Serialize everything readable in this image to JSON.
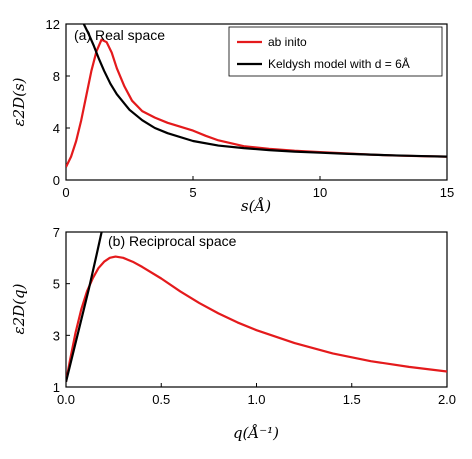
{
  "colors": {
    "ab_initio": "#e41a1c",
    "keldysh": "#000000"
  },
  "chart_data": [
    {
      "type": "line",
      "title": "(a) Real space",
      "xlabel": "s(Å)",
      "ylabel": "ε2D(s)",
      "xlim": [
        0,
        15
      ],
      "ylim": [
        0,
        12
      ],
      "xticks": [
        "0",
        "5",
        "10",
        "15"
      ],
      "yticks": [
        "0",
        "4",
        "8",
        "12"
      ],
      "legend_position": "top-right",
      "series": [
        {
          "name": "ab inito",
          "color": "#e41a1c",
          "x": [
            0,
            0.2,
            0.4,
            0.6,
            0.8,
            1.0,
            1.2,
            1.4,
            1.6,
            1.8,
            2.0,
            2.3,
            2.6,
            3.0,
            3.5,
            4.0,
            4.5,
            5.0,
            5.5,
            6.0,
            7.0,
            8.0,
            9.0,
            10.0,
            11.0,
            12.0,
            13.0,
            14.0,
            15.0
          ],
          "y": [
            1.0,
            1.8,
            3.0,
            4.6,
            6.5,
            8.4,
            9.9,
            10.8,
            10.6,
            9.8,
            8.6,
            7.2,
            6.1,
            5.3,
            4.8,
            4.4,
            4.1,
            3.8,
            3.4,
            3.05,
            2.6,
            2.4,
            2.25,
            2.15,
            2.05,
            1.95,
            1.88,
            1.83,
            1.8
          ]
        },
        {
          "name": "Keldysh model with d = 6Å",
          "color": "#000000",
          "x": [
            0.55,
            0.7,
            0.9,
            1.1,
            1.3,
            1.5,
            1.75,
            2.0,
            2.5,
            3.0,
            3.5,
            4.0,
            5.0,
            6.0,
            7.0,
            8.0,
            9.0,
            10.0,
            11.0,
            12.0,
            13.0,
            14.0,
            15.0
          ],
          "y": [
            12.5,
            12.0,
            11.2,
            10.3,
            9.3,
            8.4,
            7.4,
            6.6,
            5.4,
            4.6,
            4.0,
            3.6,
            3.0,
            2.65,
            2.45,
            2.3,
            2.18,
            2.1,
            2.02,
            1.95,
            1.89,
            1.84,
            1.8
          ]
        }
      ]
    },
    {
      "type": "line",
      "title": "(b) Reciprocal space",
      "xlabel": "q(Å⁻¹)",
      "ylabel": "ε2D(q)",
      "xlim": [
        0,
        2
      ],
      "ylim": [
        1,
        7
      ],
      "xticks": [
        "0.0",
        "0.5",
        "1.0",
        "1.5",
        "2.0"
      ],
      "yticks": [
        "1",
        "3",
        "5",
        "7"
      ],
      "series": [
        {
          "name": "ab inito",
          "color": "#e41a1c",
          "x": [
            0.0,
            0.02,
            0.05,
            0.08,
            0.11,
            0.14,
            0.17,
            0.2,
            0.23,
            0.26,
            0.3,
            0.35,
            0.4,
            0.5,
            0.6,
            0.7,
            0.8,
            0.9,
            1.0,
            1.2,
            1.4,
            1.6,
            1.8,
            2.0
          ],
          "y": [
            1.2,
            2.0,
            3.1,
            4.0,
            4.7,
            5.2,
            5.6,
            5.85,
            6.0,
            6.05,
            6.0,
            5.85,
            5.65,
            5.2,
            4.7,
            4.25,
            3.85,
            3.5,
            3.2,
            2.7,
            2.3,
            2.0,
            1.78,
            1.6
          ]
        },
        {
          "name": "Keldysh model with d = 6Å",
          "color": "#000000",
          "x": [
            0.0,
            0.04,
            0.08,
            0.12,
            0.16,
            0.19
          ],
          "y": [
            1.2,
            2.4,
            3.6,
            4.8,
            6.1,
            7.1
          ]
        }
      ]
    }
  ]
}
